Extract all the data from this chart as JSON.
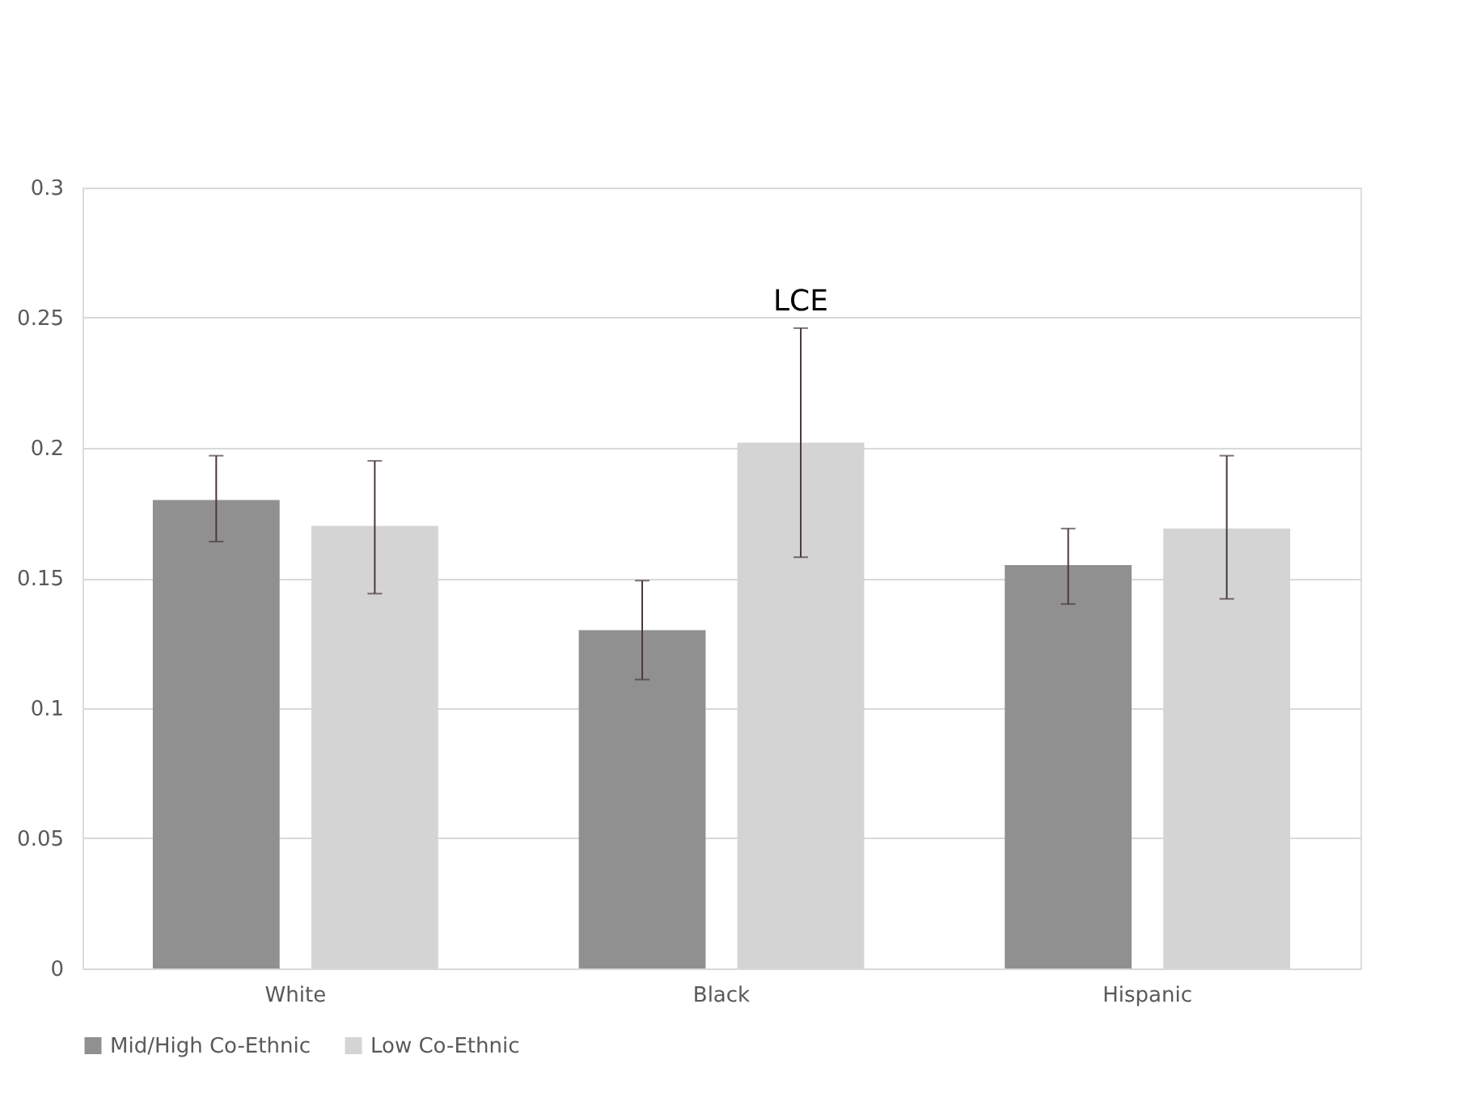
{
  "chart_data": {
    "type": "bar",
    "categories": [
      "White",
      "Black",
      "Hispanic"
    ],
    "series": [
      {
        "name": "Mid/High Co-Ethnic",
        "color": "#909090",
        "values": [
          0.18,
          0.13,
          0.155
        ],
        "errors": [
          [
            0.164,
            0.197
          ],
          [
            0.111,
            0.149
          ],
          [
            0.14,
            0.169
          ]
        ]
      },
      {
        "name": "Low Co-Ethnic",
        "color": "#d4d4d4",
        "values": [
          0.17,
          0.202,
          0.169
        ],
        "errors": [
          [
            0.144,
            0.195
          ],
          [
            0.158,
            0.246
          ],
          [
            0.142,
            0.197
          ]
        ]
      }
    ],
    "ylim": [
      0,
      0.3
    ],
    "yticks": [
      0,
      0.05,
      0.1,
      0.15,
      0.2,
      0.25,
      0.3
    ],
    "grid": "y",
    "legend": "bottom",
    "annotations": [
      "LCE"
    ]
  }
}
